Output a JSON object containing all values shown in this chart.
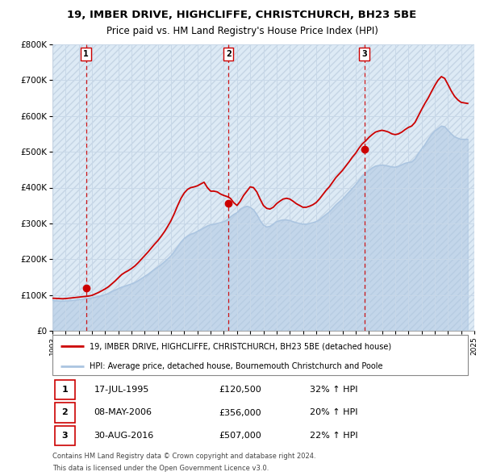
{
  "title": "19, IMBER DRIVE, HIGHCLIFFE, CHRISTCHURCH, BH23 5BE",
  "subtitle": "Price paid vs. HM Land Registry's House Price Index (HPI)",
  "legend_line1": "19, IMBER DRIVE, HIGHCLIFFE, CHRISTCHURCH, BH23 5BE (detached house)",
  "legend_line2": "HPI: Average price, detached house, Bournemouth Christchurch and Poole",
  "footer1": "Contains HM Land Registry data © Crown copyright and database right 2024.",
  "footer2": "This data is licensed under the Open Government Licence v3.0.",
  "xmin": 1993,
  "xmax": 2025,
  "ymin": 0,
  "ymax": 800000,
  "yticks": [
    0,
    100000,
    200000,
    300000,
    400000,
    500000,
    600000,
    700000,
    800000
  ],
  "ytick_labels": [
    "£0",
    "£100K",
    "£200K",
    "£300K",
    "£400K",
    "£500K",
    "£600K",
    "£700K",
    "£800K"
  ],
  "sale_color": "#cc0000",
  "hpi_color": "#aac4e0",
  "grid_color": "#c8d8e8",
  "bg_color": "#ddeaf5",
  "hatch_color": "#c5d5e5",
  "transactions": [
    {
      "num": 1,
      "date_str": "17-JUL-1995",
      "year": 1995.54,
      "price": 120500,
      "pct": "32%"
    },
    {
      "num": 2,
      "date_str": "08-MAY-2006",
      "year": 2006.35,
      "price": 356000,
      "pct": "20%"
    },
    {
      "num": 3,
      "date_str": "30-AUG-2016",
      "year": 2016.66,
      "price": 507000,
      "pct": "22%"
    }
  ],
  "hpi_data": [
    [
      1993.0,
      85000
    ],
    [
      1993.25,
      84000
    ],
    [
      1993.5,
      83500
    ],
    [
      1993.75,
      83000
    ],
    [
      1994.0,
      83500
    ],
    [
      1994.25,
      84000
    ],
    [
      1994.5,
      85000
    ],
    [
      1994.75,
      86000
    ],
    [
      1995.0,
      87000
    ],
    [
      1995.25,
      88000
    ],
    [
      1995.5,
      90000
    ],
    [
      1995.75,
      91000
    ],
    [
      1996.0,
      92000
    ],
    [
      1996.25,
      94000
    ],
    [
      1996.5,
      96000
    ],
    [
      1996.75,
      98000
    ],
    [
      1997.0,
      101000
    ],
    [
      1997.25,
      105000
    ],
    [
      1997.5,
      110000
    ],
    [
      1997.75,
      114000
    ],
    [
      1998.0,
      118000
    ],
    [
      1998.25,
      122000
    ],
    [
      1998.5,
      125000
    ],
    [
      1998.75,
      128000
    ],
    [
      1999.0,
      131000
    ],
    [
      1999.25,
      135000
    ],
    [
      1999.5,
      140000
    ],
    [
      1999.75,
      146000
    ],
    [
      2000.0,
      152000
    ],
    [
      2000.25,
      158000
    ],
    [
      2000.5,
      165000
    ],
    [
      2000.75,
      172000
    ],
    [
      2001.0,
      178000
    ],
    [
      2001.25,
      185000
    ],
    [
      2001.5,
      193000
    ],
    [
      2001.75,
      201000
    ],
    [
      2002.0,
      210000
    ],
    [
      2002.25,
      222000
    ],
    [
      2002.5,
      235000
    ],
    [
      2002.75,
      248000
    ],
    [
      2003.0,
      258000
    ],
    [
      2003.25,
      265000
    ],
    [
      2003.5,
      270000
    ],
    [
      2003.75,
      273000
    ],
    [
      2004.0,
      278000
    ],
    [
      2004.25,
      283000
    ],
    [
      2004.5,
      288000
    ],
    [
      2004.75,
      293000
    ],
    [
      2005.0,
      296000
    ],
    [
      2005.25,
      298000
    ],
    [
      2005.5,
      300000
    ],
    [
      2005.75,
      302000
    ],
    [
      2006.0,
      305000
    ],
    [
      2006.25,
      310000
    ],
    [
      2006.5,
      318000
    ],
    [
      2006.75,
      325000
    ],
    [
      2007.0,
      330000
    ],
    [
      2007.25,
      340000
    ],
    [
      2007.5,
      345000
    ],
    [
      2007.75,
      348000
    ],
    [
      2008.0,
      345000
    ],
    [
      2008.25,
      338000
    ],
    [
      2008.5,
      325000
    ],
    [
      2008.75,
      308000
    ],
    [
      2009.0,
      295000
    ],
    [
      2009.25,
      290000
    ],
    [
      2009.5,
      292000
    ],
    [
      2009.75,
      298000
    ],
    [
      2010.0,
      305000
    ],
    [
      2010.25,
      308000
    ],
    [
      2010.5,
      310000
    ],
    [
      2010.75,
      310000
    ],
    [
      2011.0,
      308000
    ],
    [
      2011.25,
      305000
    ],
    [
      2011.5,
      302000
    ],
    [
      2011.75,
      300000
    ],
    [
      2012.0,
      298000
    ],
    [
      2012.25,
      298000
    ],
    [
      2012.5,
      300000
    ],
    [
      2012.75,
      302000
    ],
    [
      2013.0,
      305000
    ],
    [
      2013.25,
      310000
    ],
    [
      2013.5,
      318000
    ],
    [
      2013.75,
      325000
    ],
    [
      2014.0,
      332000
    ],
    [
      2014.25,
      342000
    ],
    [
      2014.5,
      352000
    ],
    [
      2014.75,
      360000
    ],
    [
      2015.0,
      368000
    ],
    [
      2015.25,
      378000
    ],
    [
      2015.5,
      388000
    ],
    [
      2015.75,
      398000
    ],
    [
      2016.0,
      408000
    ],
    [
      2016.25,
      420000
    ],
    [
      2016.5,
      432000
    ],
    [
      2016.75,
      440000
    ],
    [
      2017.0,
      448000
    ],
    [
      2017.25,
      455000
    ],
    [
      2017.5,
      460000
    ],
    [
      2017.75,
      462000
    ],
    [
      2018.0,
      463000
    ],
    [
      2018.25,
      462000
    ],
    [
      2018.5,
      460000
    ],
    [
      2018.75,
      458000
    ],
    [
      2019.0,
      457000
    ],
    [
      2019.25,
      460000
    ],
    [
      2019.5,
      464000
    ],
    [
      2019.75,
      468000
    ],
    [
      2020.0,
      470000
    ],
    [
      2020.25,
      472000
    ],
    [
      2020.5,
      480000
    ],
    [
      2020.75,
      495000
    ],
    [
      2021.0,
      508000
    ],
    [
      2021.25,
      520000
    ],
    [
      2021.5,
      535000
    ],
    [
      2021.75,
      548000
    ],
    [
      2022.0,
      558000
    ],
    [
      2022.25,
      565000
    ],
    [
      2022.5,
      572000
    ],
    [
      2022.75,
      570000
    ],
    [
      2023.0,
      560000
    ],
    [
      2023.25,
      550000
    ],
    [
      2023.5,
      542000
    ],
    [
      2023.75,
      538000
    ],
    [
      2024.0,
      535000
    ],
    [
      2024.5,
      535000
    ]
  ],
  "sale_hpi_data": [
    [
      1993.0,
      91000
    ],
    [
      1993.25,
      90500
    ],
    [
      1993.5,
      90000
    ],
    [
      1993.75,
      89500
    ],
    [
      1994.0,
      90000
    ],
    [
      1994.25,
      91000
    ],
    [
      1994.5,
      92000
    ],
    [
      1994.75,
      93000
    ],
    [
      1995.0,
      94000
    ],
    [
      1995.25,
      95000
    ],
    [
      1995.5,
      96000
    ],
    [
      1995.75,
      97000
    ],
    [
      1996.0,
      99000
    ],
    [
      1996.25,
      103000
    ],
    [
      1996.5,
      107000
    ],
    [
      1996.75,
      112000
    ],
    [
      1997.0,
      117000
    ],
    [
      1997.25,
      123000
    ],
    [
      1997.5,
      131000
    ],
    [
      1997.75,
      139000
    ],
    [
      1998.0,
      148000
    ],
    [
      1998.25,
      157000
    ],
    [
      1998.5,
      163000
    ],
    [
      1998.75,
      168000
    ],
    [
      1999.0,
      174000
    ],
    [
      1999.25,
      181000
    ],
    [
      1999.5,
      190000
    ],
    [
      1999.75,
      200000
    ],
    [
      2000.0,
      210000
    ],
    [
      2000.25,
      220000
    ],
    [
      2000.5,
      231000
    ],
    [
      2000.75,
      242000
    ],
    [
      2001.0,
      252000
    ],
    [
      2001.25,
      264000
    ],
    [
      2001.5,
      277000
    ],
    [
      2001.75,
      292000
    ],
    [
      2002.0,
      308000
    ],
    [
      2002.25,
      328000
    ],
    [
      2002.5,
      350000
    ],
    [
      2002.75,
      370000
    ],
    [
      2003.0,
      385000
    ],
    [
      2003.25,
      395000
    ],
    [
      2003.5,
      400000
    ],
    [
      2003.75,
      402000
    ],
    [
      2004.0,
      405000
    ],
    [
      2004.25,
      410000
    ],
    [
      2004.5,
      415000
    ],
    [
      2004.75,
      400000
    ],
    [
      2005.0,
      390000
    ],
    [
      2005.25,
      390000
    ],
    [
      2005.5,
      388000
    ],
    [
      2005.75,
      382000
    ],
    [
      2006.0,
      378000
    ],
    [
      2006.25,
      375000
    ],
    [
      2006.5,
      370000
    ],
    [
      2006.75,
      358000
    ],
    [
      2007.0,
      350000
    ],
    [
      2007.25,
      362000
    ],
    [
      2007.5,
      378000
    ],
    [
      2007.75,
      390000
    ],
    [
      2008.0,
      402000
    ],
    [
      2008.25,
      400000
    ],
    [
      2008.5,
      388000
    ],
    [
      2008.75,
      368000
    ],
    [
      2009.0,
      350000
    ],
    [
      2009.25,
      342000
    ],
    [
      2009.5,
      340000
    ],
    [
      2009.75,
      345000
    ],
    [
      2010.0,
      355000
    ],
    [
      2010.25,
      362000
    ],
    [
      2010.5,
      368000
    ],
    [
      2010.75,
      370000
    ],
    [
      2011.0,
      368000
    ],
    [
      2011.25,
      362000
    ],
    [
      2011.5,
      355000
    ],
    [
      2011.75,
      350000
    ],
    [
      2012.0,
      345000
    ],
    [
      2012.25,
      345000
    ],
    [
      2012.5,
      348000
    ],
    [
      2012.75,
      352000
    ],
    [
      2013.0,
      358000
    ],
    [
      2013.25,
      368000
    ],
    [
      2013.5,
      380000
    ],
    [
      2013.75,
      392000
    ],
    [
      2014.0,
      402000
    ],
    [
      2014.25,
      415000
    ],
    [
      2014.5,
      428000
    ],
    [
      2014.75,
      438000
    ],
    [
      2015.0,
      448000
    ],
    [
      2015.25,
      460000
    ],
    [
      2015.5,
      472000
    ],
    [
      2015.75,
      485000
    ],
    [
      2016.0,
      496000
    ],
    [
      2016.25,
      510000
    ],
    [
      2016.5,
      522000
    ],
    [
      2016.75,
      530000
    ],
    [
      2017.0,
      540000
    ],
    [
      2017.25,
      548000
    ],
    [
      2017.5,
      555000
    ],
    [
      2017.75,
      558000
    ],
    [
      2018.0,
      560000
    ],
    [
      2018.25,
      558000
    ],
    [
      2018.5,
      555000
    ],
    [
      2018.75,
      550000
    ],
    [
      2019.0,
      548000
    ],
    [
      2019.25,
      550000
    ],
    [
      2019.5,
      555000
    ],
    [
      2019.75,
      562000
    ],
    [
      2020.0,
      568000
    ],
    [
      2020.25,
      572000
    ],
    [
      2020.5,
      582000
    ],
    [
      2020.75,
      600000
    ],
    [
      2021.0,
      618000
    ],
    [
      2021.25,
      635000
    ],
    [
      2021.5,
      650000
    ],
    [
      2021.75,
      668000
    ],
    [
      2022.0,
      685000
    ],
    [
      2022.25,
      700000
    ],
    [
      2022.5,
      710000
    ],
    [
      2022.75,
      705000
    ],
    [
      2023.0,
      688000
    ],
    [
      2023.25,
      670000
    ],
    [
      2023.5,
      655000
    ],
    [
      2023.75,
      645000
    ],
    [
      2024.0,
      638000
    ],
    [
      2024.5,
      635000
    ]
  ]
}
